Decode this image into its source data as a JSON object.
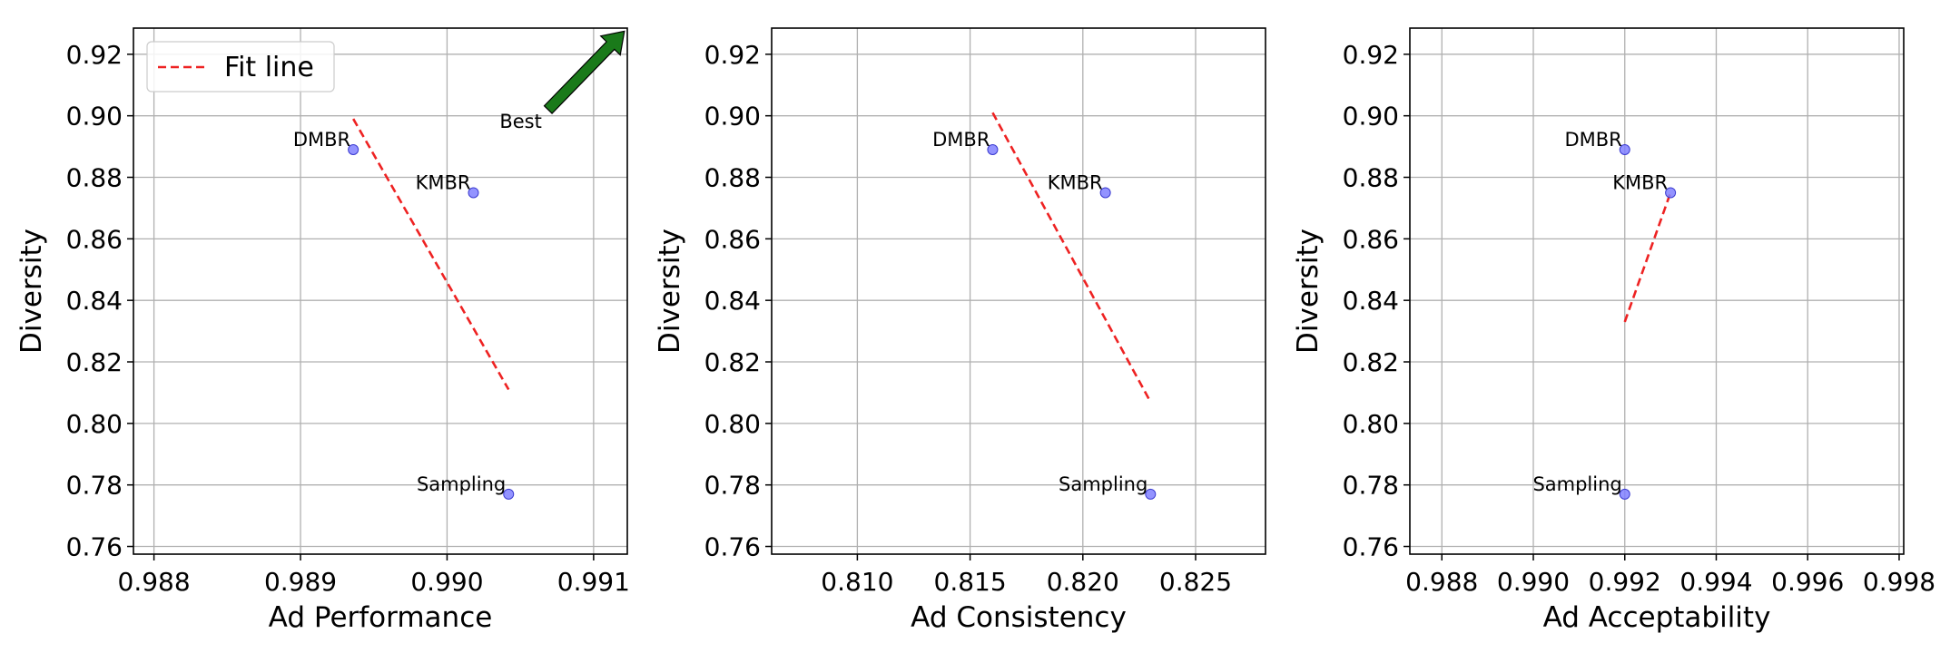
{
  "chart_data": [
    {
      "type": "scatter",
      "xlabel": "Ad Performance",
      "ylabel": "Diversity",
      "xlim": [
        0.98786,
        0.99123
      ],
      "ylim": [
        0.7575,
        0.9285
      ],
      "xticks": [
        "0.988",
        "0.989",
        "0.990",
        "0.991"
      ],
      "xtick_values": [
        0.988,
        0.989,
        0.99,
        0.991
      ],
      "yticks": [
        "0.76",
        "0.78",
        "0.80",
        "0.82",
        "0.84",
        "0.86",
        "0.88",
        "0.90",
        "0.92"
      ],
      "ytick_values": [
        0.76,
        0.78,
        0.8,
        0.82,
        0.84,
        0.86,
        0.88,
        0.9,
        0.92
      ],
      "grid": true,
      "legend": {
        "entries": [
          "Fit line"
        ],
        "placement": "top-left"
      },
      "points": [
        {
          "label": "DMBR",
          "x": 0.98936,
          "y": 0.889
        },
        {
          "label": "KMBR",
          "x": 0.99018,
          "y": 0.875
        },
        {
          "label": "Sampling",
          "x": 0.99042,
          "y": 0.777
        }
      ],
      "fit_line": {
        "name": "Fit line",
        "x": [
          0.98936,
          0.99042
        ],
        "y": [
          0.899,
          0.811
        ]
      },
      "annotation": {
        "text": "Best",
        "arrow_from": [
          0.99069,
          0.902
        ],
        "arrow_to": [
          0.99121,
          0.9275
        ]
      }
    },
    {
      "type": "scatter",
      "xlabel": "Ad Consistency",
      "ylabel": "Diversity",
      "xlim": [
        0.8062,
        0.8281
      ],
      "ylim": [
        0.7575,
        0.9285
      ],
      "xticks": [
        "0.810",
        "0.815",
        "0.820",
        "0.825"
      ],
      "xtick_values": [
        0.81,
        0.815,
        0.82,
        0.825
      ],
      "yticks": [
        "0.76",
        "0.78",
        "0.80",
        "0.82",
        "0.84",
        "0.86",
        "0.88",
        "0.90",
        "0.92"
      ],
      "ytick_values": [
        0.76,
        0.78,
        0.8,
        0.82,
        0.84,
        0.86,
        0.88,
        0.9,
        0.92
      ],
      "grid": true,
      "points": [
        {
          "label": "DMBR",
          "x": 0.816,
          "y": 0.889
        },
        {
          "label": "KMBR",
          "x": 0.821,
          "y": 0.875
        },
        {
          "label": "Sampling",
          "x": 0.823,
          "y": 0.777
        }
      ],
      "fit_line": {
        "name": "Fit line",
        "x": [
          0.816,
          0.823
        ],
        "y": [
          0.901,
          0.807
        ]
      }
    },
    {
      "type": "scatter",
      "xlabel": "Ad Acceptability",
      "ylabel": "Diversity",
      "xlim": [
        0.9873,
        0.9981
      ],
      "ylim": [
        0.7575,
        0.9285
      ],
      "xticks": [
        "0.988",
        "0.990",
        "0.992",
        "0.994",
        "0.996",
        "0.998"
      ],
      "xtick_values": [
        0.988,
        0.99,
        0.992,
        0.994,
        0.996,
        0.998
      ],
      "yticks": [
        "0.76",
        "0.78",
        "0.80",
        "0.82",
        "0.84",
        "0.86",
        "0.88",
        "0.90",
        "0.92"
      ],
      "ytick_values": [
        0.76,
        0.78,
        0.8,
        0.82,
        0.84,
        0.86,
        0.88,
        0.9,
        0.92
      ],
      "grid": true,
      "points": [
        {
          "label": "DMBR",
          "x": 0.992,
          "y": 0.889
        },
        {
          "label": "KMBR",
          "x": 0.993,
          "y": 0.875
        },
        {
          "label": "Sampling",
          "x": 0.992,
          "y": 0.777
        }
      ],
      "fit_line": {
        "name": "Fit line",
        "x": [
          0.992,
          0.993
        ],
        "y": [
          0.833,
          0.875
        ]
      }
    }
  ],
  "colors": {
    "point_fill": "#8080ff",
    "point_edge": "#3a3ad0",
    "fit_line": "#ee2222",
    "arrow_fill": "#1a7a1a",
    "grid": "#b0b0b0",
    "axes": "#000000"
  }
}
